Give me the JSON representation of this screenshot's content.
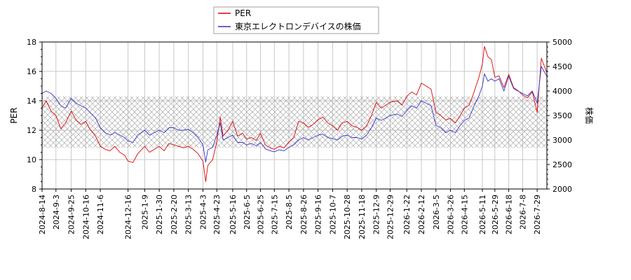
{
  "chart_data": {
    "type": "line",
    "title": "",
    "xlabel": "",
    "ylabel": "PER",
    "y2label": "株価",
    "ylim": [
      8,
      18
    ],
    "y2lim": [
      2000,
      5000
    ],
    "yticks": [
      8,
      10,
      12,
      14,
      16,
      18
    ],
    "y2ticks": [
      2000,
      2500,
      3000,
      3500,
      4000,
      4500,
      5000
    ],
    "xlim": [
      "2024-08-14",
      "2026-08-12"
    ],
    "xticks": [
      "2024-8-14",
      "2024-9-3",
      "2024-9-25",
      "2024-10-16",
      "2024-11-6",
      "2024-12-16",
      "2025-1-9",
      "2025-1-30",
      "2025-2-20",
      "2025-3-13",
      "2025-4-3",
      "2025-4-23",
      "2025-5-16",
      "2025-6-5",
      "2025-6-25",
      "2025-7-15",
      "2025-8-5",
      "2025-8-26",
      "2025-9-16",
      "2025-10-7",
      "2025-10-28",
      "2025-11-18",
      "2025-12-9",
      "2025-12-29",
      "2026-1-22",
      "2026-2-12",
      "2026-3-5",
      "2026-3-26",
      "2026-4-15",
      "2026-5-11",
      "2026-5-29",
      "2026-6-18",
      "2026-7-8",
      "2026-7-29"
    ],
    "grid": true,
    "legend_position": "top-center",
    "band": {
      "y_low": 10.8,
      "y_high": 14.3,
      "pattern": "crosshatch"
    },
    "series": [
      {
        "name": "PER",
        "axis": "left",
        "color": "#dd0000",
        "points": [
          [
            "2024-8-14",
            13.5
          ],
          [
            "2024-8-20",
            14.0
          ],
          [
            "2024-8-27",
            13.3
          ],
          [
            "2024-9-3",
            13.0
          ],
          [
            "2024-9-10",
            12.1
          ],
          [
            "2024-9-17",
            12.5
          ],
          [
            "2024-9-25",
            13.3
          ],
          [
            "2024-10-2",
            12.7
          ],
          [
            "2024-10-9",
            12.4
          ],
          [
            "2024-10-16",
            12.6
          ],
          [
            "2024-10-23",
            12.0
          ],
          [
            "2024-10-30",
            11.6
          ],
          [
            "2024-11-6",
            10.9
          ],
          [
            "2024-11-13",
            10.7
          ],
          [
            "2024-11-20",
            10.6
          ],
          [
            "2024-11-27",
            10.9
          ],
          [
            "2024-12-4",
            10.5
          ],
          [
            "2024-12-11",
            10.3
          ],
          [
            "2024-12-16",
            9.9
          ],
          [
            "2024-12-23",
            9.8
          ],
          [
            "2024-12-30",
            10.4
          ],
          [
            "2025-1-9",
            10.9
          ],
          [
            "2025-1-16",
            10.5
          ],
          [
            "2025-1-23",
            10.7
          ],
          [
            "2025-1-30",
            10.9
          ],
          [
            "2025-2-6",
            10.6
          ],
          [
            "2025-2-13",
            11.1
          ],
          [
            "2025-2-20",
            11.0
          ],
          [
            "2025-2-27",
            10.9
          ],
          [
            "2025-3-6",
            10.8
          ],
          [
            "2025-3-13",
            10.9
          ],
          [
            "2025-3-20",
            10.7
          ],
          [
            "2025-3-27",
            10.4
          ],
          [
            "2025-4-3",
            9.9
          ],
          [
            "2025-4-7",
            8.5
          ],
          [
            "2025-4-10",
            9.6
          ],
          [
            "2025-4-17",
            10.0
          ],
          [
            "2025-4-23",
            11.2
          ],
          [
            "2025-4-28",
            12.9
          ],
          [
            "2025-5-2",
            11.6
          ],
          [
            "2025-5-9",
            12.0
          ],
          [
            "2025-5-16",
            12.6
          ],
          [
            "2025-5-23",
            11.6
          ],
          [
            "2025-5-30",
            11.8
          ],
          [
            "2025-6-5",
            11.4
          ],
          [
            "2025-6-12",
            11.5
          ],
          [
            "2025-6-19",
            11.3
          ],
          [
            "2025-6-25",
            11.8
          ],
          [
            "2025-7-2",
            11.0
          ],
          [
            "2025-7-9",
            10.8
          ],
          [
            "2025-7-15",
            10.7
          ],
          [
            "2025-7-22",
            10.9
          ],
          [
            "2025-7-29",
            10.8
          ],
          [
            "2025-8-5",
            11.2
          ],
          [
            "2025-8-12",
            11.5
          ],
          [
            "2025-8-19",
            12.6
          ],
          [
            "2025-8-26",
            12.5
          ],
          [
            "2025-9-2",
            12.2
          ],
          [
            "2025-9-9",
            12.4
          ],
          [
            "2025-9-16",
            12.7
          ],
          [
            "2025-9-23",
            12.9
          ],
          [
            "2025-9-30",
            12.5
          ],
          [
            "2025-10-7",
            12.3
          ],
          [
            "2025-10-14",
            12.0
          ],
          [
            "2025-10-21",
            12.5
          ],
          [
            "2025-10-28",
            12.6
          ],
          [
            "2025-11-4",
            12.3
          ],
          [
            "2025-11-11",
            12.2
          ],
          [
            "2025-11-18",
            12.0
          ],
          [
            "2025-11-25",
            12.3
          ],
          [
            "2025-12-2",
            13.0
          ],
          [
            "2025-12-9",
            13.9
          ],
          [
            "2025-12-16",
            13.5
          ],
          [
            "2025-12-23",
            13.7
          ],
          [
            "2025-12-29",
            13.9
          ],
          [
            "2026-1-8",
            14.0
          ],
          [
            "2026-1-15",
            13.7
          ],
          [
            "2026-1-22",
            14.3
          ],
          [
            "2026-1-29",
            14.6
          ],
          [
            "2026-2-5",
            14.4
          ],
          [
            "2026-2-12",
            15.2
          ],
          [
            "2026-2-19",
            15.0
          ],
          [
            "2026-2-26",
            14.8
          ],
          [
            "2026-3-5",
            13.2
          ],
          [
            "2026-3-12",
            13.0
          ],
          [
            "2026-3-19",
            12.7
          ],
          [
            "2026-3-26",
            12.8
          ],
          [
            "2026-4-2",
            12.5
          ],
          [
            "2026-4-9",
            13.0
          ],
          [
            "2026-4-15",
            13.5
          ],
          [
            "2026-4-22",
            13.7
          ],
          [
            "2026-4-29",
            14.6
          ],
          [
            "2026-5-6",
            15.6
          ],
          [
            "2026-5-11",
            16.5
          ],
          [
            "2026-5-14",
            17.7
          ],
          [
            "2026-5-19",
            17.0
          ],
          [
            "2026-5-24",
            16.8
          ],
          [
            "2026-5-29",
            15.6
          ],
          [
            "2026-6-4",
            15.7
          ],
          [
            "2026-6-11",
            14.9
          ],
          [
            "2026-6-18",
            15.8
          ],
          [
            "2026-6-25",
            14.9
          ],
          [
            "2026-7-1",
            14.7
          ],
          [
            "2026-7-8",
            14.4
          ],
          [
            "2026-7-15",
            14.2
          ],
          [
            "2026-7-22",
            14.6
          ],
          [
            "2026-7-29",
            13.2
          ],
          [
            "2026-8-4",
            16.9
          ],
          [
            "2026-8-12",
            15.9
          ]
        ]
      },
      {
        "name": "東京エレクトロンデバイスの株価",
        "axis": "right",
        "color": "#3333cc",
        "points": [
          [
            "2024-8-14",
            3950
          ],
          [
            "2024-8-20",
            4000
          ],
          [
            "2024-8-27",
            3950
          ],
          [
            "2024-9-3",
            3850
          ],
          [
            "2024-9-10",
            3700
          ],
          [
            "2024-9-17",
            3650
          ],
          [
            "2024-9-25",
            3850
          ],
          [
            "2024-10-2",
            3750
          ],
          [
            "2024-10-9",
            3700
          ],
          [
            "2024-10-16",
            3650
          ],
          [
            "2024-10-23",
            3550
          ],
          [
            "2024-10-30",
            3450
          ],
          [
            "2024-11-6",
            3250
          ],
          [
            "2024-11-13",
            3150
          ],
          [
            "2024-11-20",
            3100
          ],
          [
            "2024-11-27",
            3150
          ],
          [
            "2024-12-4",
            3100
          ],
          [
            "2024-12-11",
            3050
          ],
          [
            "2024-12-16",
            2980
          ],
          [
            "2024-12-23",
            2950
          ],
          [
            "2024-12-30",
            3100
          ],
          [
            "2025-1-9",
            3200
          ],
          [
            "2025-1-16",
            3100
          ],
          [
            "2025-1-23",
            3150
          ],
          [
            "2025-1-30",
            3200
          ],
          [
            "2025-2-6",
            3150
          ],
          [
            "2025-2-13",
            3250
          ],
          [
            "2025-2-20",
            3250
          ],
          [
            "2025-2-27",
            3200
          ],
          [
            "2025-3-6",
            3200
          ],
          [
            "2025-3-13",
            3220
          ],
          [
            "2025-3-20",
            3150
          ],
          [
            "2025-3-27",
            3050
          ],
          [
            "2025-4-3",
            2900
          ],
          [
            "2025-4-7",
            2550
          ],
          [
            "2025-4-10",
            2800
          ],
          [
            "2025-4-17",
            2850
          ],
          [
            "2025-4-23",
            3100
          ],
          [
            "2025-4-28",
            3350
          ],
          [
            "2025-5-2",
            3000
          ],
          [
            "2025-5-9",
            3050
          ],
          [
            "2025-5-16",
            3100
          ],
          [
            "2025-5-23",
            2950
          ],
          [
            "2025-5-30",
            2950
          ],
          [
            "2025-6-5",
            2900
          ],
          [
            "2025-6-12",
            2930
          ],
          [
            "2025-6-19",
            2880
          ],
          [
            "2025-6-25",
            2950
          ],
          [
            "2025-7-2",
            2820
          ],
          [
            "2025-7-9",
            2780
          ],
          [
            "2025-7-15",
            2760
          ],
          [
            "2025-7-22",
            2800
          ],
          [
            "2025-7-29",
            2780
          ],
          [
            "2025-8-5",
            2850
          ],
          [
            "2025-8-12",
            2900
          ],
          [
            "2025-8-19",
            3000
          ],
          [
            "2025-8-26",
            3050
          ],
          [
            "2025-9-2",
            3000
          ],
          [
            "2025-9-9",
            3050
          ],
          [
            "2025-9-16",
            3100
          ],
          [
            "2025-9-23",
            3120
          ],
          [
            "2025-9-30",
            3050
          ],
          [
            "2025-10-7",
            3030
          ],
          [
            "2025-10-14",
            3000
          ],
          [
            "2025-10-21",
            3080
          ],
          [
            "2025-10-28",
            3100
          ],
          [
            "2025-11-4",
            3050
          ],
          [
            "2025-11-11",
            3050
          ],
          [
            "2025-11-18",
            3020
          ],
          [
            "2025-11-25",
            3100
          ],
          [
            "2025-12-2",
            3250
          ],
          [
            "2025-12-9",
            3450
          ],
          [
            "2025-12-16",
            3400
          ],
          [
            "2025-12-23",
            3450
          ],
          [
            "2025-12-29",
            3500
          ],
          [
            "2026-1-8",
            3530
          ],
          [
            "2026-1-15",
            3480
          ],
          [
            "2026-1-22",
            3600
          ],
          [
            "2026-1-29",
            3700
          ],
          [
            "2026-2-5",
            3650
          ],
          [
            "2026-2-12",
            3800
          ],
          [
            "2026-2-19",
            3750
          ],
          [
            "2026-2-26",
            3700
          ],
          [
            "2026-3-5",
            3300
          ],
          [
            "2026-3-12",
            3250
          ],
          [
            "2026-3-19",
            3150
          ],
          [
            "2026-3-26",
            3200
          ],
          [
            "2026-4-2",
            3150
          ],
          [
            "2026-4-9",
            3300
          ],
          [
            "2026-4-15",
            3400
          ],
          [
            "2026-4-22",
            3450
          ],
          [
            "2026-4-29",
            3700
          ],
          [
            "2026-5-6",
            3900
          ],
          [
            "2026-5-11",
            4100
          ],
          [
            "2026-5-14",
            4350
          ],
          [
            "2026-5-19",
            4200
          ],
          [
            "2026-5-24",
            4250
          ],
          [
            "2026-5-29",
            4200
          ],
          [
            "2026-6-4",
            4250
          ],
          [
            "2026-6-11",
            4000
          ],
          [
            "2026-6-18",
            4300
          ],
          [
            "2026-6-25",
            4050
          ],
          [
            "2026-7-1",
            4000
          ],
          [
            "2026-7-8",
            3950
          ],
          [
            "2026-7-15",
            3900
          ],
          [
            "2026-7-22",
            4000
          ],
          [
            "2026-7-29",
            3750
          ],
          [
            "2026-8-4",
            4500
          ],
          [
            "2026-8-12",
            4300
          ]
        ]
      }
    ]
  }
}
